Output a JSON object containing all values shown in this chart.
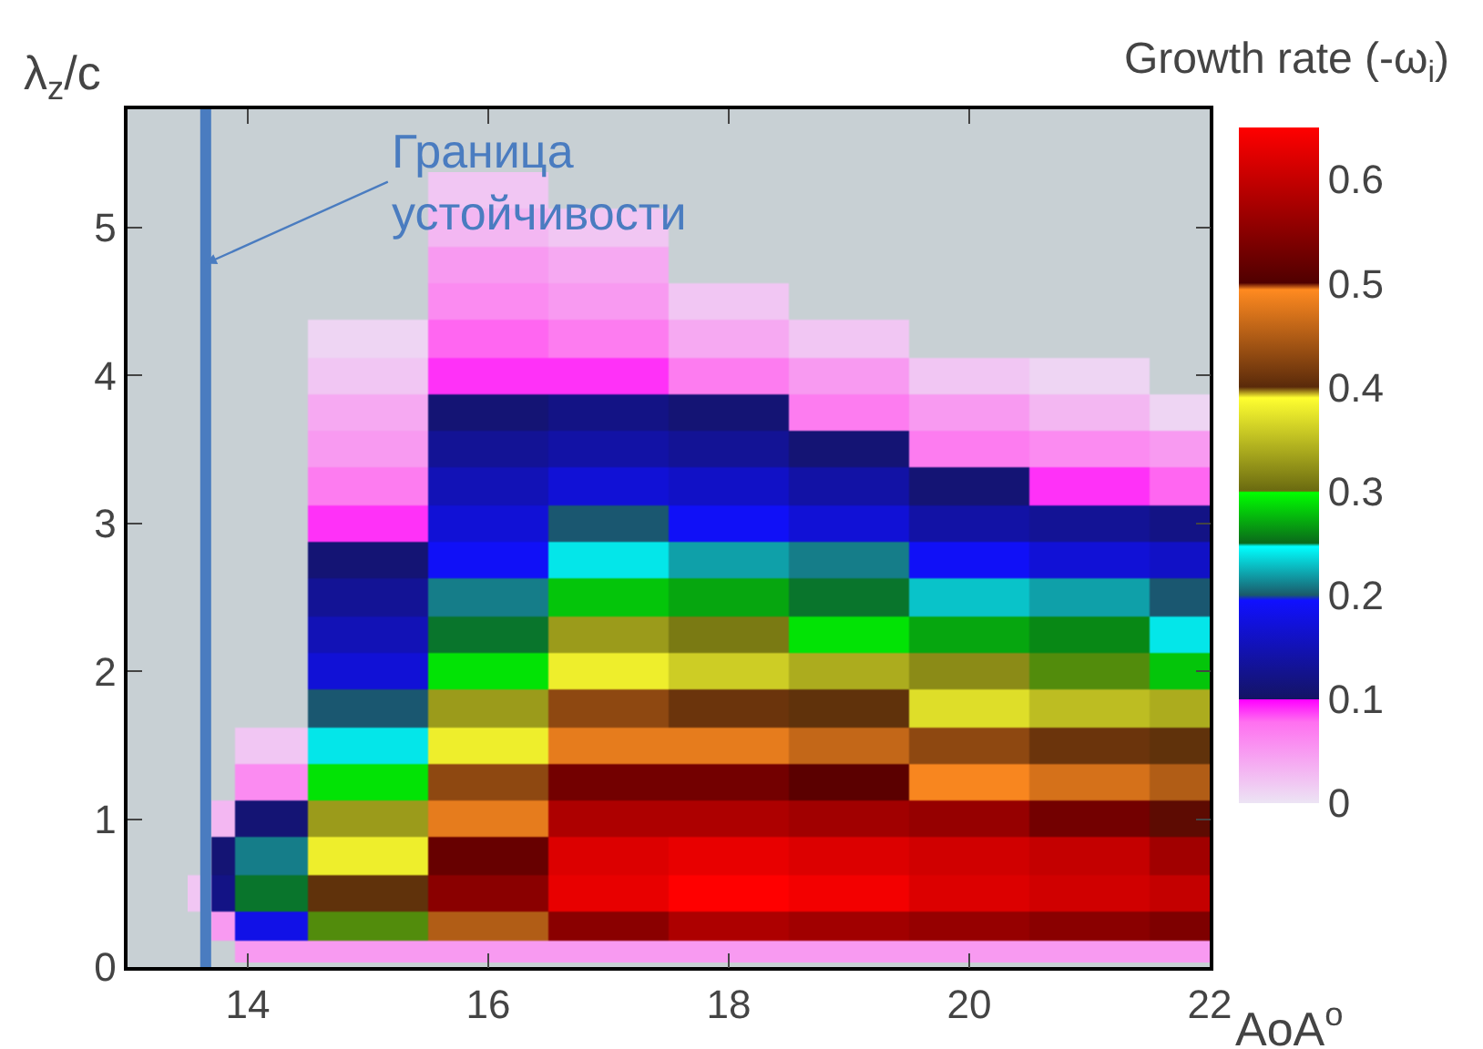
{
  "chart_data": {
    "type": "heatmap",
    "xlabel": "AoA$^{o}$",
    "ylabel": "λ$_{z}$/c",
    "clabel": "Growth rate (-ω$_{i}$)",
    "x": [
      13.6,
      13.8,
      14,
      15,
      16,
      17,
      18,
      19,
      20,
      21,
      22
    ],
    "y": [
      0.1,
      0.25,
      0.5,
      0.75,
      1,
      1.25,
      1.5,
      1.75,
      2,
      2.25,
      2.5,
      2.75,
      3,
      3.25,
      3.5,
      3.75,
      4,
      4.25,
      4.5,
      4.75,
      5,
      5.25
    ],
    "cells": [
      [
        null,
        null,
        0.05,
        0.05,
        0.05,
        0.05,
        0.05,
        0.05,
        0.05,
        0.05,
        0.05
      ],
      [
        null,
        0.05,
        0.18,
        0.3,
        0.45,
        0.55,
        0.58,
        0.57,
        0.56,
        0.55,
        0.54
      ],
      [
        0.02,
        0.12,
        0.25,
        0.4,
        0.55,
        0.63,
        0.65,
        0.64,
        0.62,
        0.61,
        0.6
      ],
      [
        null,
        0.11,
        0.21,
        0.38,
        0.52,
        0.62,
        0.63,
        0.62,
        0.61,
        0.6,
        0.57
      ],
      [
        null,
        0.03,
        0.11,
        0.33,
        0.48,
        0.58,
        0.58,
        0.57,
        0.56,
        0.53,
        0.5
      ],
      [
        null,
        null,
        0.06,
        0.29,
        0.43,
        0.53,
        0.53,
        0.51,
        0.49,
        0.47,
        0.45
      ],
      [
        null,
        null,
        0.02,
        0.24,
        0.38,
        0.48,
        0.48,
        0.46,
        0.43,
        0.41,
        0.4
      ],
      [
        null,
        null,
        null,
        0.2,
        0.33,
        0.43,
        0.41,
        0.4,
        0.37,
        0.35,
        0.34
      ],
      [
        null,
        null,
        null,
        0.17,
        0.29,
        0.38,
        0.36,
        0.34,
        0.32,
        0.3,
        0.28
      ],
      [
        null,
        null,
        null,
        0.15,
        0.25,
        0.33,
        0.31,
        0.29,
        0.27,
        0.26,
        0.24
      ],
      [
        null,
        null,
        null,
        0.13,
        0.21,
        0.28,
        0.27,
        0.25,
        0.23,
        0.22,
        0.2
      ],
      [
        null,
        null,
        null,
        0.11,
        0.19,
        0.24,
        0.22,
        0.21,
        0.19,
        0.17,
        0.16
      ],
      [
        null,
        null,
        null,
        0.09,
        0.17,
        0.2,
        0.19,
        0.17,
        0.14,
        0.13,
        0.12
      ],
      [
        null,
        null,
        null,
        0.07,
        0.15,
        0.17,
        0.16,
        0.14,
        0.11,
        0.09,
        0.08
      ],
      [
        null,
        null,
        null,
        0.05,
        0.13,
        0.14,
        0.13,
        0.11,
        0.07,
        0.06,
        0.05
      ],
      [
        null,
        null,
        null,
        0.04,
        0.11,
        0.12,
        0.11,
        0.07,
        0.05,
        0.03,
        0.01
      ],
      [
        null,
        null,
        null,
        0.02,
        0.09,
        0.09,
        0.07,
        0.05,
        0.02,
        0.01,
        null
      ],
      [
        null,
        null,
        null,
        0.01,
        0.08,
        0.07,
        0.04,
        0.02,
        null,
        null,
        null
      ],
      [
        null,
        null,
        null,
        null,
        0.06,
        0.05,
        0.02,
        null,
        null,
        null,
        null
      ],
      [
        null,
        null,
        null,
        null,
        0.05,
        0.04,
        null,
        null,
        null,
        null,
        null
      ],
      [
        null,
        null,
        null,
        null,
        0.03,
        0.02,
        null,
        null,
        null,
        null,
        null
      ],
      [
        null,
        null,
        null,
        null,
        0.02,
        null,
        null,
        null,
        null,
        null,
        null
      ]
    ],
    "xlim": [
      13,
      22
    ],
    "xticks": [
      14,
      16,
      18,
      20,
      22
    ],
    "ylim": [
      0,
      5.8
    ],
    "yticks": [
      0,
      1,
      2,
      3,
      4,
      5
    ],
    "clim": [
      0,
      0.65
    ],
    "cticks": [
      0,
      0.1,
      0.2,
      0.3,
      0.4,
      0.5,
      0.6
    ],
    "ref_lines": [
      {
        "axis": "x",
        "value": 13.65,
        "label": "Граница устойчивости",
        "color": "#4a7cc0"
      }
    ]
  }
}
